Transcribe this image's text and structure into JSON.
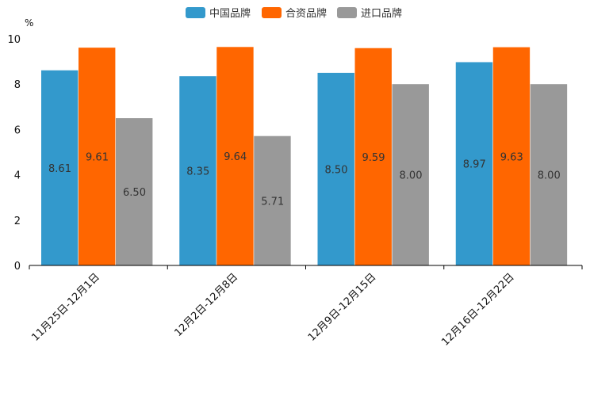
{
  "chart_data": {
    "type": "bar",
    "title": "",
    "unit_label": "%",
    "xlabel": "",
    "ylabel": "",
    "ylim": [
      0,
      10
    ],
    "yticks": [
      0,
      2,
      4,
      6,
      8,
      10
    ],
    "legend_position": "top-center",
    "grid": false,
    "categories": [
      "11月25日-12月1日",
      "12月2日-12月8日",
      "12月9日-12月15日",
      "12月16日-12月22日"
    ],
    "series": [
      {
        "name": "中国品牌",
        "color": "#3399CC",
        "values": [
          8.61,
          8.35,
          8.5,
          8.97
        ],
        "labels": [
          "8.61",
          "8.35",
          "8.50",
          "8.97"
        ]
      },
      {
        "name": "合资品牌",
        "color": "#FF6600",
        "values": [
          9.61,
          9.64,
          9.59,
          9.63
        ],
        "labels": [
          "9.61",
          "9.64",
          "9.59",
          "9.63"
        ]
      },
      {
        "name": "进口品牌",
        "color": "#999999",
        "values": [
          6.5,
          5.71,
          8.0,
          8.0
        ],
        "labels": [
          "6.50",
          "5.71",
          "8.00",
          "8.00"
        ]
      }
    ]
  }
}
